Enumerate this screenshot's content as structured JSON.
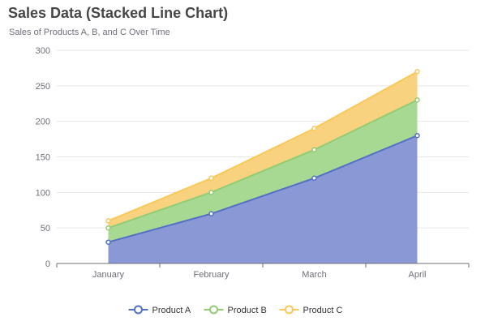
{
  "title": "Sales Data (Stacked Line Chart)",
  "subtitle": "Sales of Products A, B, and C Over Time",
  "chart_data": {
    "type": "area",
    "stacked": true,
    "title": "Sales Data (Stacked Line Chart)",
    "subtitle": "Sales of Products A, B, and C Over Time",
    "xlabel": "",
    "ylabel": "",
    "categories": [
      "January",
      "February",
      "March",
      "April"
    ],
    "ylim": [
      0,
      300
    ],
    "yticks": [
      0,
      50,
      100,
      150,
      200,
      250,
      300
    ],
    "grid": true,
    "legend_position": "bottom",
    "series": [
      {
        "name": "Product A",
        "values": [
          30,
          70,
          120,
          180
        ],
        "color": "#5470c6",
        "fill": "#8a99d6"
      },
      {
        "name": "Product B",
        "values": [
          20,
          30,
          40,
          50
        ],
        "color": "#91cc75",
        "fill": "#a8d992"
      },
      {
        "name": "Product C",
        "values": [
          10,
          20,
          30,
          40
        ],
        "color": "#fac858",
        "fill": "#f8d27e"
      }
    ]
  }
}
